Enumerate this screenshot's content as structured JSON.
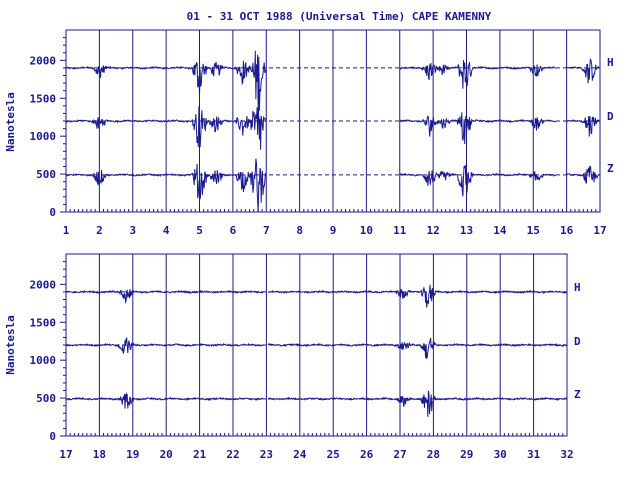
{
  "chart_data": {
    "type": "line",
    "title": "01 - 31 OCT 1988 (Universal Time) CAPE KAMENNY",
    "ylabel": "Nanotesla",
    "ylim": [
      0,
      2400
    ],
    "yticks": [
      0,
      500,
      1000,
      1500,
      2000
    ],
    "panels": [
      {
        "xlim": [
          1,
          17
        ],
        "xticks": [
          1,
          2,
          3,
          4,
          5,
          6,
          7,
          8,
          9,
          10,
          11,
          12,
          13,
          14,
          15,
          16,
          17
        ],
        "data_gaps": [
          [
            7,
            11
          ],
          [
            15.7,
            16
          ]
        ],
        "series": [
          {
            "name": "H",
            "baseline": 1900
          },
          {
            "name": "D",
            "baseline": 1200
          },
          {
            "name": "Z",
            "baseline": 490
          }
        ]
      },
      {
        "xlim": [
          17,
          32
        ],
        "xticks": [
          17,
          18,
          19,
          20,
          21,
          22,
          23,
          24,
          25,
          26,
          27,
          28,
          29,
          30,
          31,
          32
        ],
        "data_gaps": [
          [
            22.9,
            23.05
          ]
        ],
        "series": [
          {
            "name": "H",
            "baseline": 1900
          },
          {
            "name": "D",
            "baseline": 1200
          },
          {
            "name": "Z",
            "baseline": 490
          }
        ]
      }
    ],
    "disturbances": [
      {
        "day": 2.0,
        "amp": 150
      },
      {
        "day": 5.0,
        "amp": 400
      },
      {
        "day": 5.5,
        "amp": 150
      },
      {
        "day": 6.3,
        "amp": 220
      },
      {
        "day": 6.75,
        "amp": 650
      },
      {
        "day": 11.9,
        "amp": 200
      },
      {
        "day": 12.3,
        "amp": 100
      },
      {
        "day": 12.95,
        "amp": 380
      },
      {
        "day": 15.1,
        "amp": 120
      },
      {
        "day": 16.7,
        "amp": 250
      },
      {
        "day": 18.8,
        "amp": 160
      },
      {
        "day": 27.1,
        "amp": 100
      },
      {
        "day": 27.85,
        "amp": 250
      }
    ],
    "colors": {
      "ink": "#1a1a8c",
      "background": "#ffffff"
    }
  }
}
